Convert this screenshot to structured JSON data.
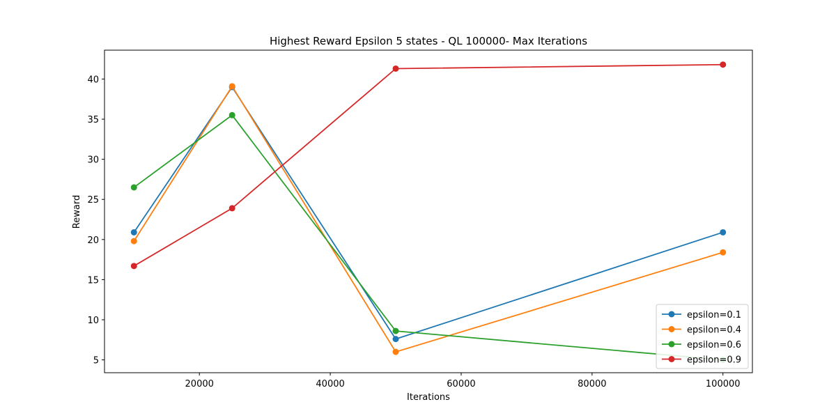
{
  "chart_data": {
    "type": "line",
    "title": "Highest Reward Epsilon 5 states - QL 100000- Max Iterations",
    "xlabel": "Iterations",
    "ylabel": "Reward",
    "x": [
      10000,
      25000,
      50000,
      100000
    ],
    "xlim": [
      5500,
      104500
    ],
    "ylim": [
      3.4,
      43.6
    ],
    "xticks": [
      20000,
      40000,
      60000,
      80000,
      100000
    ],
    "yticks": [
      5,
      10,
      15,
      20,
      25,
      30,
      35,
      40
    ],
    "grid": false,
    "legend_position": "lower-right",
    "series": [
      {
        "name": "epsilon=0.1",
        "color": "#1f77b4",
        "values": [
          20.9,
          39.0,
          7.6,
          20.9
        ]
      },
      {
        "name": "epsilon=0.4",
        "color": "#ff7f0e",
        "values": [
          19.8,
          39.1,
          6.0,
          18.4
        ]
      },
      {
        "name": "epsilon=0.6",
        "color": "#2ca02c",
        "values": [
          26.5,
          35.5,
          8.6,
          5.0
        ]
      },
      {
        "name": "epsilon=0.9",
        "color": "#d62728",
        "values": [
          16.7,
          23.9,
          41.3,
          41.8
        ]
      }
    ]
  }
}
